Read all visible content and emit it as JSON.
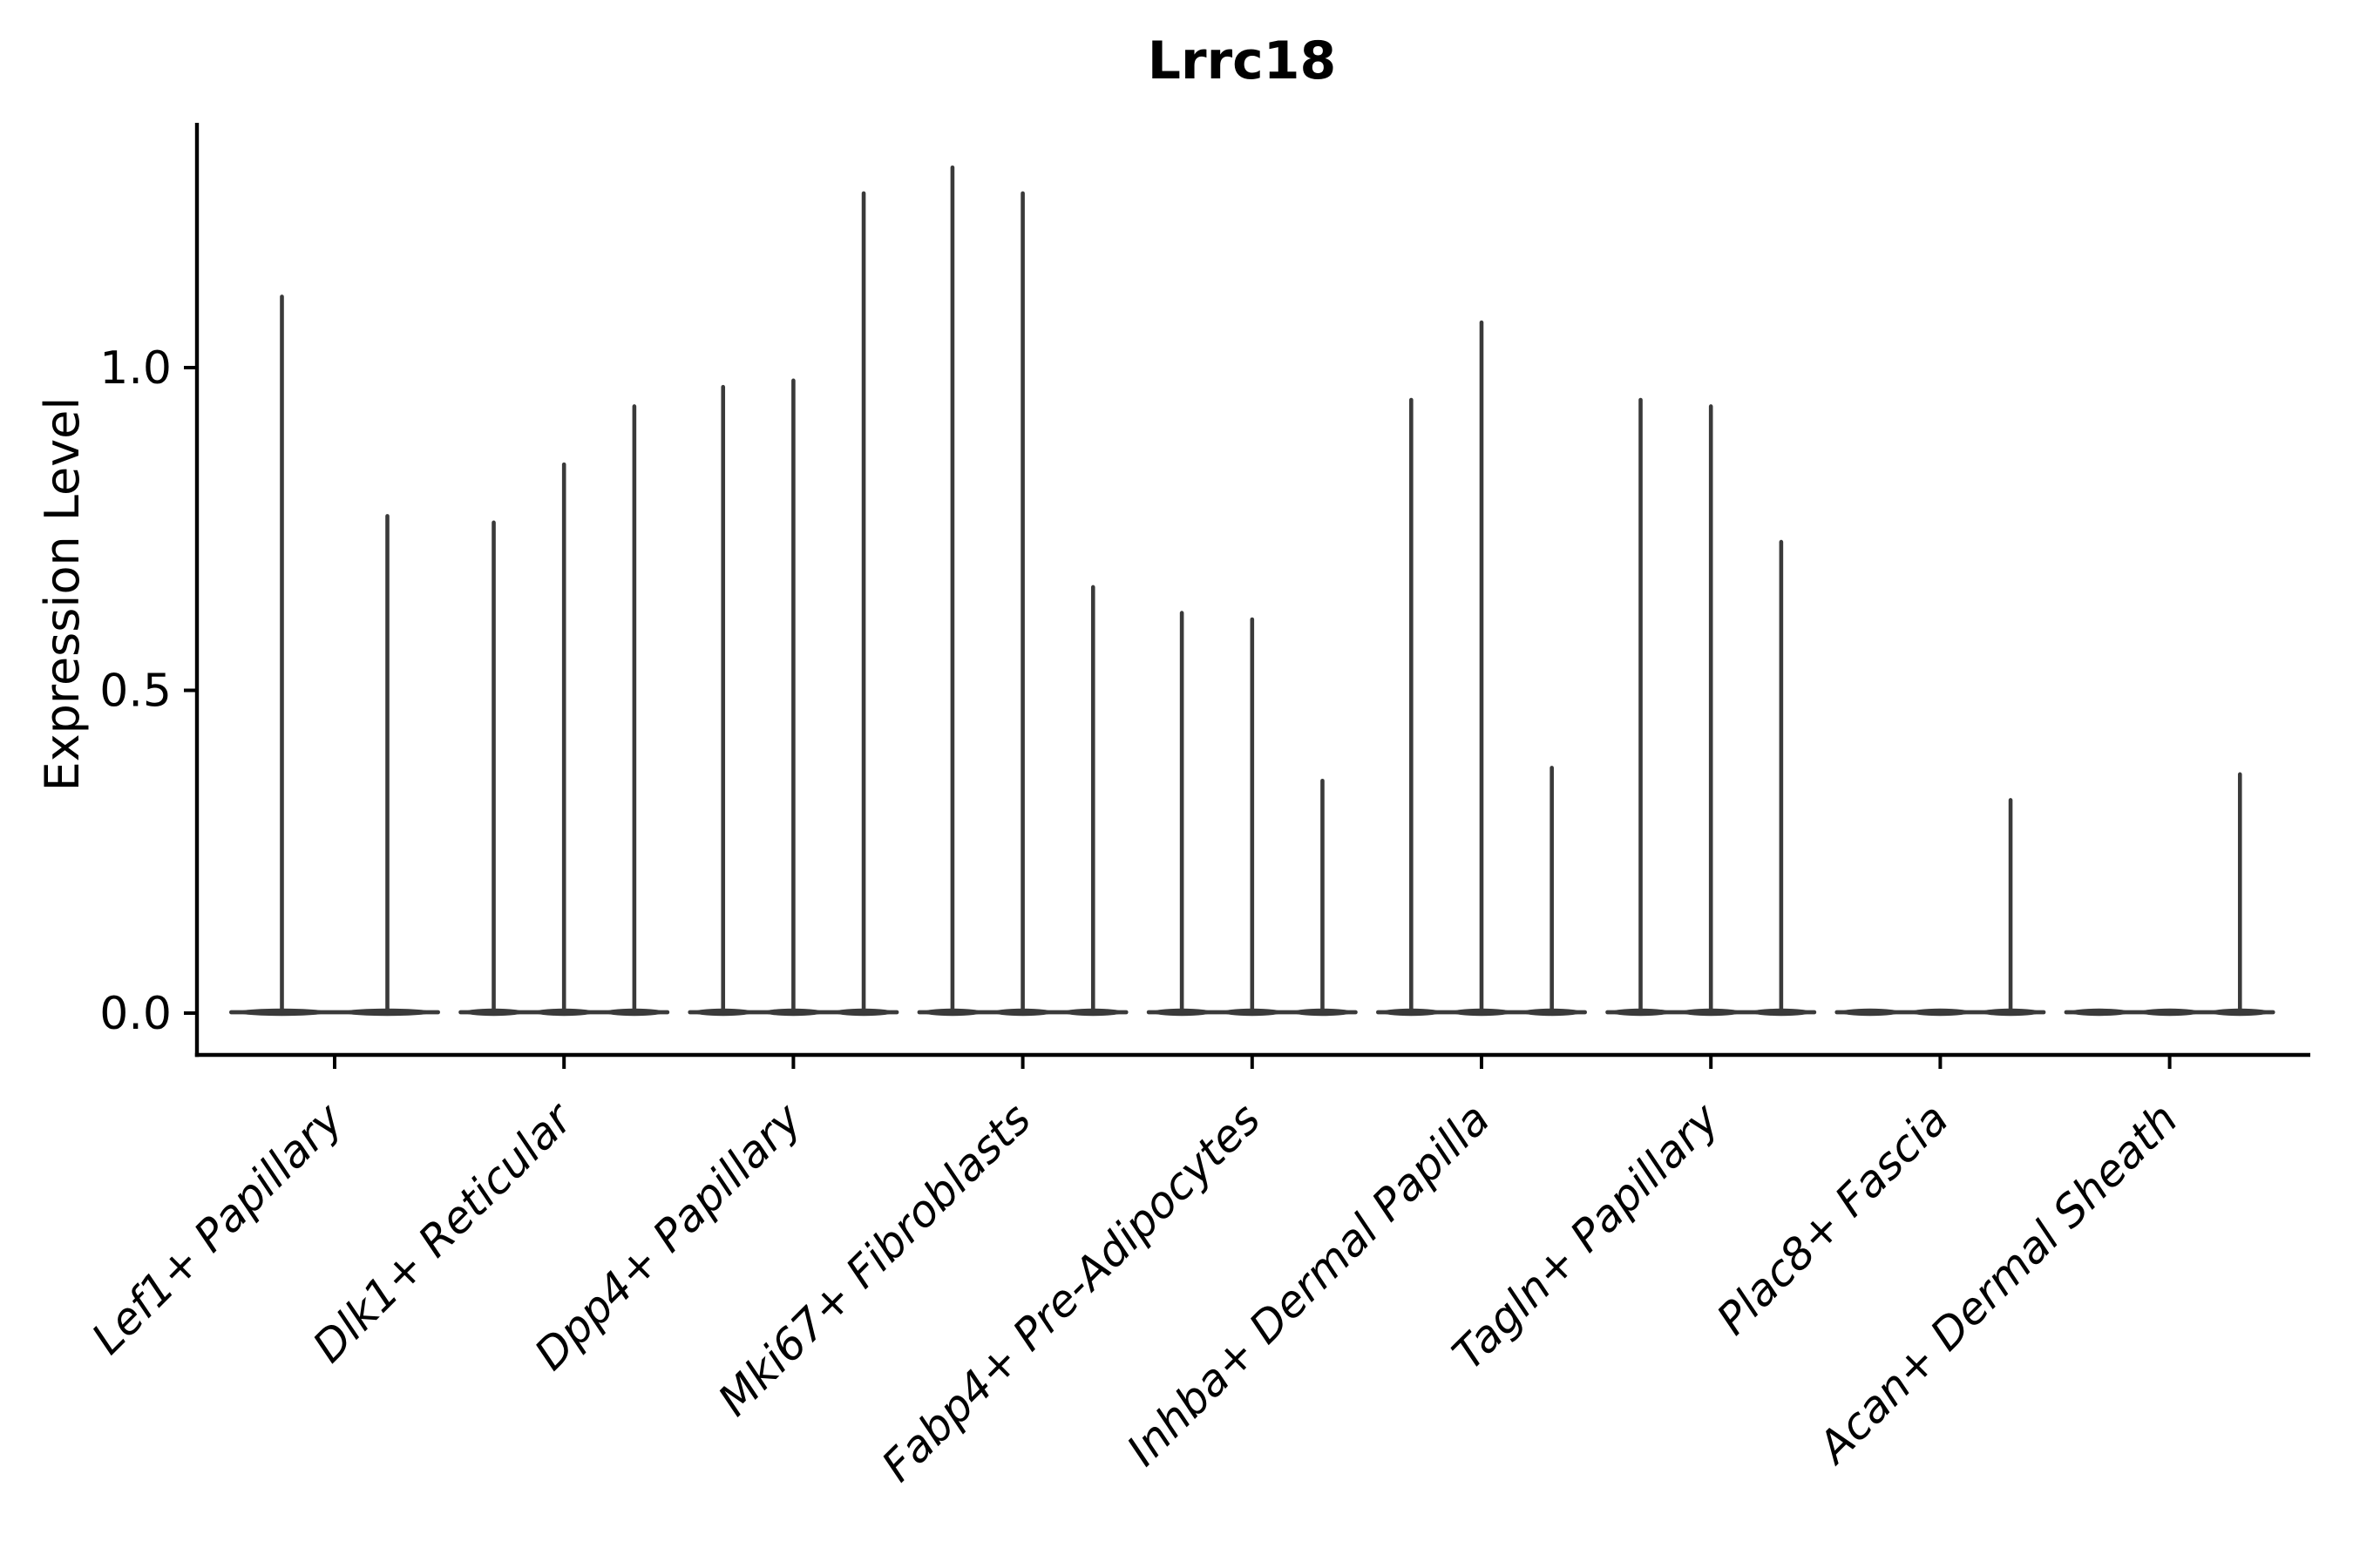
{
  "figure": {
    "background": "#ffffff"
  },
  "chart_data": {
    "type": "violin",
    "title": "Lrrc18",
    "ylabel": "Expression Level",
    "xlabel": "",
    "grid": false,
    "legend": "none",
    "axis_color": "#000000",
    "violin_color": "#3a3a3a",
    "ylim": [
      -0.07,
      1.38
    ],
    "ytick_values": [
      0.0,
      0.5,
      1.0
    ],
    "ytick_labels": [
      "0.0",
      "0.5",
      "1.0"
    ],
    "categories": [
      "Lef1+ Papillary",
      "Dlk1+ Reticular",
      "Dpp4+ Papillary",
      "Mki67+ Fibroblasts",
      "Fabp4+ Pre-Adipocytes",
      "Inhba+ Dermal Papilla",
      "Tagln+ Papillary",
      "Plac8+ Fascia",
      "Acan+ Dermal Sheath"
    ],
    "groups": [
      {
        "category": "Lef1+ Papillary",
        "violin_max": [
          1.11,
          0.77
        ]
      },
      {
        "category": "Dlk1+ Reticular",
        "violin_max": [
          0.76,
          0.85,
          0.94
        ]
      },
      {
        "category": "Dpp4+ Papillary",
        "violin_max": [
          0.97,
          0.98,
          1.27
        ]
      },
      {
        "category": "Mki67+ Fibroblasts",
        "violin_max": [
          1.31,
          1.27,
          0.66
        ]
      },
      {
        "category": "Fabp4+ Pre-Adipocytes",
        "violin_max": [
          0.62,
          0.61,
          0.36
        ]
      },
      {
        "category": "Inhba+ Dermal Papilla",
        "violin_max": [
          0.95,
          1.07,
          0.38
        ]
      },
      {
        "category": "Tagln+ Papillary",
        "violin_max": [
          0.95,
          0.94,
          0.73
        ]
      },
      {
        "category": "Plac8+ Fascia",
        "violin_max": [
          0.0,
          0.0,
          0.33
        ]
      },
      {
        "category": "Acan+ Dermal Sheath",
        "violin_max": [
          0.0,
          0.0,
          0.37
        ]
      }
    ],
    "notes": "Each category shows thin violins collapsed at 0 with a narrow spike up to the per-violin maximum expression value."
  }
}
